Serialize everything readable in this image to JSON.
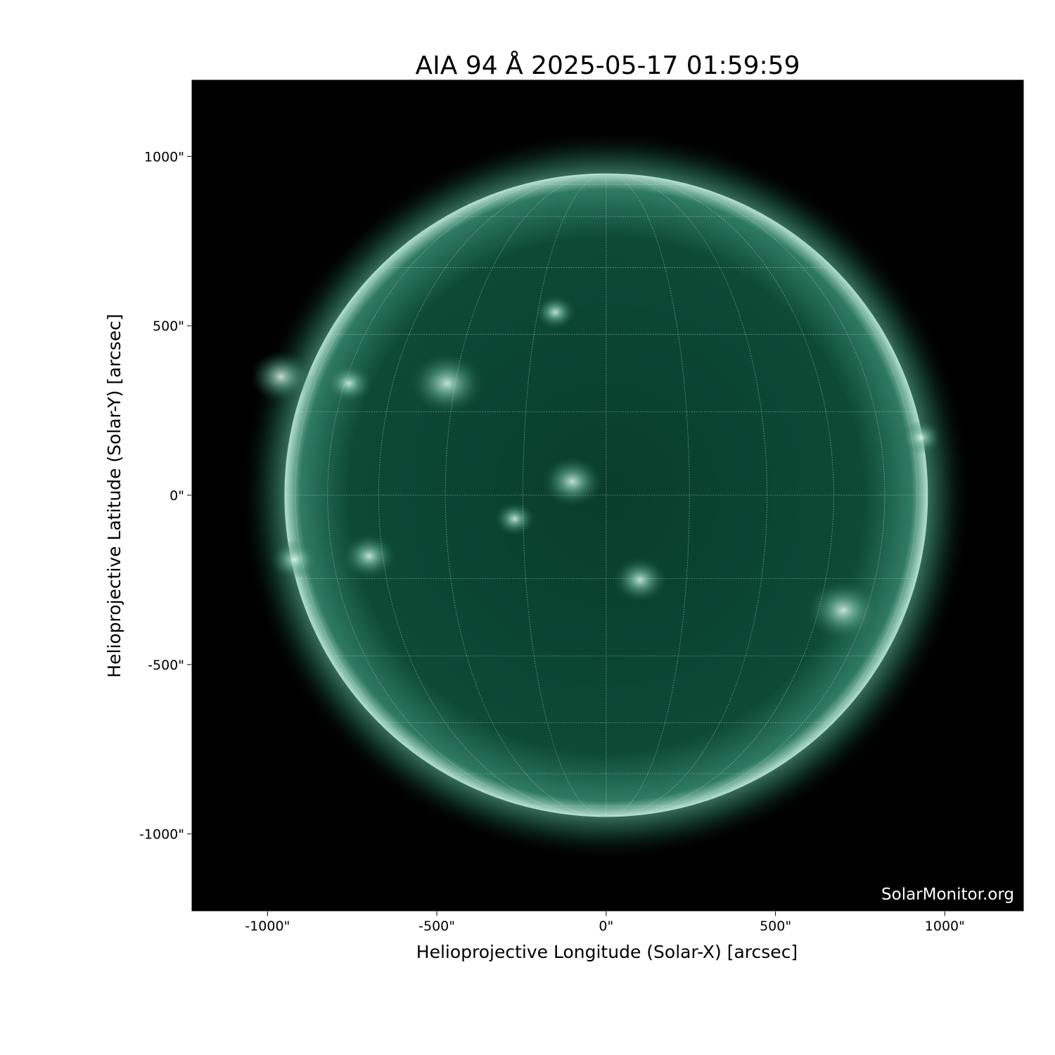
{
  "chart_data": {
    "type": "image",
    "title": "AIA 94 Å 2025-05-17 01:59:59",
    "xlabel": "Helioprojective Longitude (Solar-X) [arcsec]",
    "ylabel": "Helioprojective Latitude (Solar-Y) [arcsec]",
    "xlim": [
      -1225,
      1234
    ],
    "ylim": [
      -1229,
      1227
    ],
    "xticks": [
      -1000,
      -500,
      0,
      500,
      1000
    ],
    "xtick_labels": [
      "-1000\"",
      "-500\"",
      "0\"",
      "500\"",
      "1000\""
    ],
    "yticks": [
      1000,
      500,
      0,
      -500,
      -1000
    ],
    "ytick_labels": [
      "1000\"",
      "500\"",
      "0\"",
      "-500\"",
      "-1000\""
    ],
    "solar_radius_arcsec": 950,
    "grid": true,
    "watermark": "SolarMonitor.org",
    "colors": {
      "background": "#000000",
      "disk": "#0b4634",
      "limb": "#bfe6d6",
      "grid": "#d8e8e0"
    }
  }
}
